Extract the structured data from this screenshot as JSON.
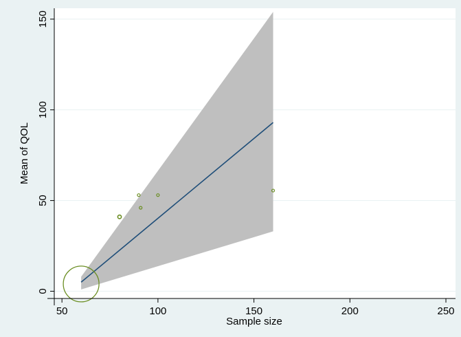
{
  "chart_data": {
    "type": "scatter",
    "title": "",
    "xlabel": "Sample size",
    "ylabel": "Mean of QOL",
    "xlim": [
      46,
      255
    ],
    "ylim": [
      -4,
      156
    ],
    "xticks": [
      50,
      100,
      150,
      200,
      250
    ],
    "yticks": [
      0,
      50,
      100,
      150
    ],
    "grid": "horizontal",
    "colors": {
      "background": "#eaf2f3",
      "plot_area": "#ffffff",
      "grid": "#eaf2f3",
      "band": "#bfbfbf",
      "fit_line": "#1f4e79",
      "marker": "#6b8e23"
    },
    "series": [
      {
        "type": "scatter",
        "points": [
          {
            "x": 80,
            "y": 41,
            "size": "medium"
          },
          {
            "x": 90,
            "y": 53,
            "size": "small"
          },
          {
            "x": 91,
            "y": 46,
            "size": "small"
          },
          {
            "x": 100,
            "y": 53,
            "size": "small"
          },
          {
            "x": 160,
            "y": 55.5,
            "size": "small"
          },
          {
            "x": 60,
            "y": 4,
            "size": "large"
          }
        ]
      },
      {
        "type": "line",
        "x": [
          60,
          160
        ],
        "y": [
          5,
          93
        ]
      },
      {
        "type": "area",
        "x": [
          60,
          160
        ],
        "upper": [
          8,
          154
        ],
        "lower": [
          1,
          33
        ]
      }
    ]
  }
}
